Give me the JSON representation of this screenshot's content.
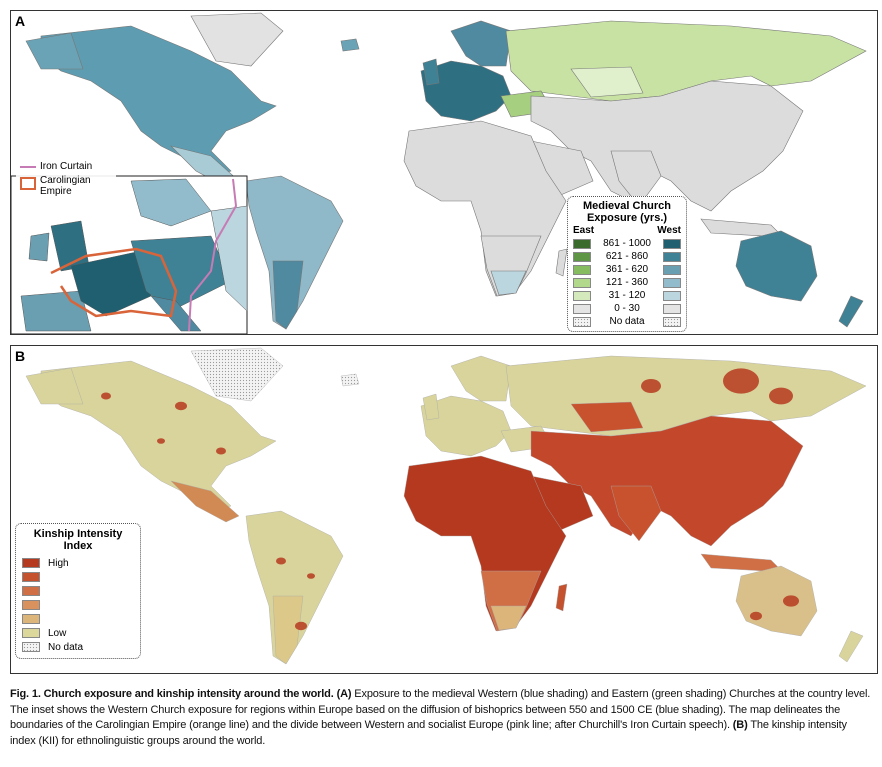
{
  "panels": [
    {
      "label": "A",
      "inset_legend": {
        "items": [
          "Iron Curtain",
          "Carolingian Empire"
        ]
      },
      "legend": {
        "title": "Medieval Church Exposure (yrs.)",
        "columns": [
          "East",
          "West"
        ],
        "ranges": [
          "861 - 1000",
          "621 - 860",
          "361 - 620",
          "121 - 360",
          "31 - 120",
          "0 - 30"
        ],
        "no_data": "No data"
      }
    },
    {
      "label": "B",
      "legend": {
        "title": "Kinship Intensity Index",
        "high": "High",
        "low": "Low",
        "no_data": "No data"
      }
    }
  ],
  "caption": {
    "title": "Fig. 1. Church exposure and kinship intensity around the world.",
    "part_a_label": "(A)",
    "part_a_text": "Exposure to the medieval Western (blue shading) and Eastern (green shading) Churches at the country level. The inset shows the Western Church exposure for regions within Europe based on the diffusion of bishoprics between 550 and 1500 CE (blue shading). The map delineates the boundaries of the Carolingian Empire (orange line) and the divide between Western and socialist Europe (pink line; after Churchill's Iron Curtain speech).",
    "part_b_label": "(B)",
    "part_b_text": "The kinship intensity index (KII) for ethnolinguistic groups around the world."
  }
}
